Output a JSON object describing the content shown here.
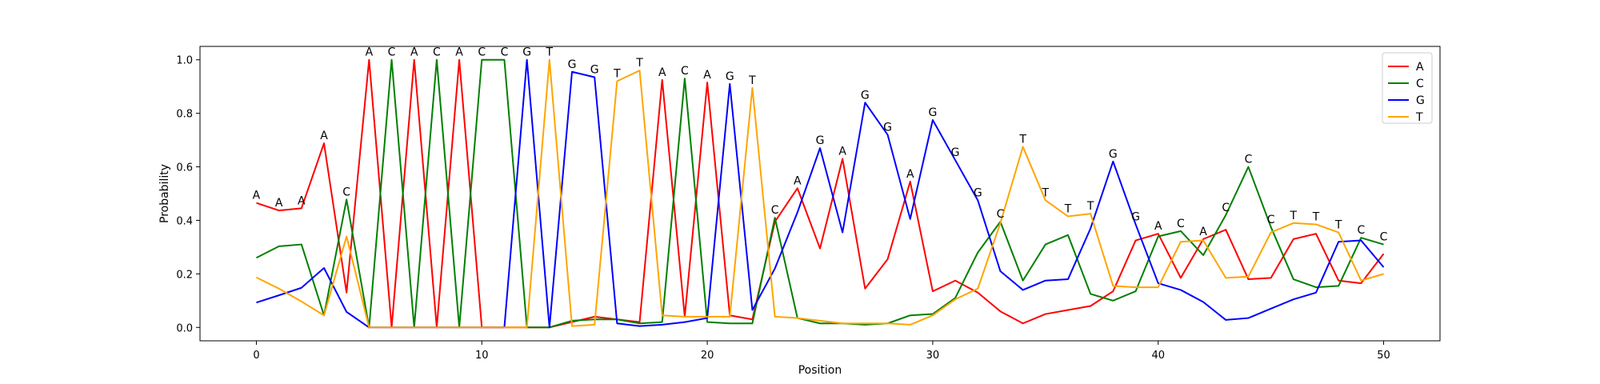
{
  "chart_data": {
    "type": "line",
    "title": "",
    "xlabel": "Position",
    "ylabel": "Probability",
    "xlim": [
      -2.5,
      52.5
    ],
    "ylim": [
      -0.05,
      1.05
    ],
    "x_ticks": [
      0,
      10,
      20,
      30,
      40,
      50
    ],
    "y_ticks": [
      0.0,
      0.2,
      0.4,
      0.6,
      0.8,
      1.0
    ],
    "x_tick_labels": [
      "0",
      "10",
      "20",
      "30",
      "40",
      "50"
    ],
    "y_tick_labels": [
      "0.0",
      "0.2",
      "0.4",
      "0.6",
      "0.8",
      "1.0"
    ],
    "grid": false,
    "legend_position": "top-right",
    "x": [
      0,
      1,
      2,
      3,
      4,
      5,
      6,
      7,
      8,
      9,
      10,
      11,
      12,
      13,
      14,
      15,
      16,
      17,
      18,
      19,
      20,
      21,
      22,
      23,
      24,
      25,
      26,
      27,
      28,
      29,
      30,
      31,
      32,
      33,
      34,
      35,
      36,
      37,
      38,
      39,
      40,
      41,
      42,
      43,
      44,
      45,
      46,
      47,
      48,
      49,
      50
    ],
    "series": [
      {
        "name": "A",
        "color": "#ff0000",
        "values": [
          0.465,
          0.437,
          0.445,
          0.688,
          0.13,
          1.0,
          0.0,
          1.0,
          0.0,
          1.0,
          0.0,
          0.0,
          0.0,
          0.0,
          0.02,
          0.04,
          0.03,
          0.02,
          0.925,
          0.04,
          0.915,
          0.045,
          0.03,
          0.395,
          0.52,
          0.295,
          0.63,
          0.145,
          0.255,
          0.545,
          0.135,
          0.175,
          0.13,
          0.06,
          0.015,
          0.05,
          0.065,
          0.08,
          0.135,
          0.325,
          0.35,
          0.185,
          0.33,
          0.365,
          0.18,
          0.185,
          0.33,
          0.35,
          0.175,
          0.165,
          0.275
        ]
      },
      {
        "name": "C",
        "color": "#008000",
        "values": [
          0.26,
          0.303,
          0.31,
          0.045,
          0.478,
          0.0,
          1.0,
          0.0,
          1.0,
          0.0,
          1.0,
          1.0,
          0.0,
          0.0,
          0.025,
          0.03,
          0.03,
          0.015,
          0.02,
          0.93,
          0.02,
          0.015,
          0.015,
          0.41,
          0.035,
          0.015,
          0.015,
          0.01,
          0.015,
          0.045,
          0.05,
          0.11,
          0.28,
          0.395,
          0.175,
          0.31,
          0.345,
          0.125,
          0.1,
          0.135,
          0.34,
          0.36,
          0.27,
          0.42,
          0.6,
          0.375,
          0.18,
          0.15,
          0.155,
          0.335,
          0.31
        ]
      },
      {
        "name": "G",
        "color": "#0000ff",
        "values": [
          0.093,
          0.12,
          0.148,
          0.222,
          0.058,
          0.0,
          0.0,
          0.0,
          0.0,
          0.0,
          0.0,
          0.0,
          1.0,
          0.0,
          0.955,
          0.935,
          0.015,
          0.005,
          0.01,
          0.02,
          0.035,
          0.91,
          0.065,
          0.22,
          0.43,
          0.67,
          0.355,
          0.84,
          0.72,
          0.405,
          0.775,
          0.625,
          0.475,
          0.21,
          0.14,
          0.175,
          0.18,
          0.37,
          0.62,
          0.385,
          0.165,
          0.14,
          0.095,
          0.028,
          0.035,
          0.07,
          0.105,
          0.13,
          0.32,
          0.325,
          0.225
        ]
      },
      {
        "name": "T",
        "color": "#ffa500",
        "values": [
          0.187,
          0.145,
          0.097,
          0.045,
          0.34,
          0.0,
          0.0,
          0.0,
          0.0,
          0.0,
          0.0,
          0.0,
          0.0,
          1.0,
          0.005,
          0.01,
          0.92,
          0.96,
          0.045,
          0.04,
          0.04,
          0.04,
          0.895,
          0.04,
          0.035,
          0.025,
          0.015,
          0.015,
          0.015,
          0.01,
          0.045,
          0.105,
          0.145,
          0.39,
          0.675,
          0.475,
          0.415,
          0.425,
          0.155,
          0.15,
          0.15,
          0.32,
          0.325,
          0.185,
          0.19,
          0.355,
          0.39,
          0.385,
          0.355,
          0.175,
          0.2
        ]
      }
    ],
    "point_labels": [
      "A",
      "A",
      "A",
      "A",
      "C",
      "A",
      "C",
      "A",
      "C",
      "A",
      "C",
      "C",
      "G",
      "T",
      "G",
      "G",
      "T",
      "T",
      "A",
      "C",
      "A",
      "G",
      "T",
      "C",
      "A",
      "G",
      "A",
      "G",
      "G",
      "A",
      "G",
      "G",
      "G",
      "C",
      "T",
      "T",
      "T",
      "T",
      "G",
      "G",
      "A",
      "C",
      "A",
      "C",
      "C",
      "C",
      "T",
      "T",
      "T",
      "C",
      "C"
    ]
  }
}
